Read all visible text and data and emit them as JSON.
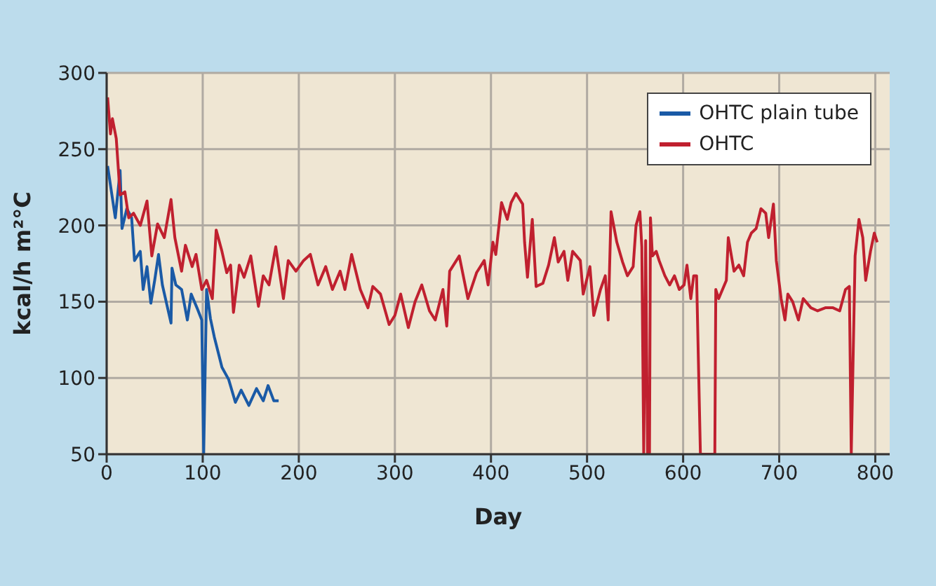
{
  "chart_data": {
    "type": "line",
    "xlabel": "Day",
    "ylabel": "kcal/h m²°C",
    "xlim": [
      0,
      815
    ],
    "xticks": [
      0,
      100,
      200,
      300,
      400,
      500,
      600,
      700,
      800
    ],
    "ylim": [
      50,
      300
    ],
    "yticks": [
      50,
      100,
      150,
      200,
      250,
      300
    ],
    "grid": true,
    "legend": "top right",
    "line_style": "solid",
    "series": [
      {
        "name": "OHTC plain tube",
        "color": "#1a5aa6",
        "x": [
          1,
          5,
          9,
          14,
          16,
          21,
          26,
          29,
          35,
          38,
          42,
          46,
          50,
          54,
          58,
          67,
          68,
          72,
          78,
          84,
          88,
          94,
          99,
          101,
          104,
          108,
          112,
          120,
          127,
          134,
          140,
          148,
          156,
          163,
          168,
          174,
          179
        ],
        "values": [
          239,
          222,
          205,
          236,
          198,
          211,
          205,
          177,
          183,
          158,
          173,
          149,
          164,
          181,
          161,
          136,
          172,
          161,
          158,
          138,
          155,
          146,
          138,
          50,
          158,
          139,
          127,
          107,
          99,
          84,
          92,
          82,
          93,
          85,
          95,
          85,
          85
        ]
      },
      {
        "name": "OHTC",
        "color": "#c0202f",
        "x": [
          1,
          4,
          6,
          10,
          14,
          19,
          23,
          28,
          35,
          42,
          47,
          53,
          60,
          67,
          71,
          78,
          82,
          89,
          93,
          99,
          104,
          110,
          114,
          120,
          125,
          129,
          132,
          138,
          143,
          150,
          158,
          163,
          169,
          176,
          184,
          189,
          197,
          205,
          212,
          220,
          228,
          235,
          243,
          248,
          255,
          264,
          272,
          277,
          285,
          294,
          300,
          306,
          314,
          321,
          328,
          336,
          342,
          350,
          354,
          357,
          367,
          376,
          385,
          393,
          397,
          402,
          405,
          411,
          417,
          421,
          426,
          433,
          435,
          438,
          443,
          447,
          454,
          460,
          466,
          470,
          476,
          480,
          485,
          493,
          496,
          503,
          507,
          514,
          519,
          522,
          525,
          531,
          537,
          542,
          548,
          551,
          555,
          557,
          559,
          561,
          563,
          565,
          566,
          568,
          572,
          575,
          581,
          586,
          591,
          596,
          601,
          604,
          608,
          611,
          614,
          618,
          633,
          634,
          637,
          645,
          647,
          653,
          658,
          663,
          667,
          671,
          676,
          681,
          686,
          689,
          694,
          697,
          702,
          706,
          709,
          714,
          720,
          725,
          733,
          740,
          748,
          756,
          763,
          769,
          773,
          775,
          779,
          783,
          787,
          790,
          795,
          799,
          802
        ],
        "values": [
          284,
          260,
          270,
          257,
          220,
          222,
          205,
          208,
          200,
          216,
          180,
          201,
          192,
          217,
          192,
          170,
          187,
          173,
          181,
          158,
          164,
          152,
          197,
          183,
          169,
          174,
          143,
          174,
          166,
          180,
          147,
          167,
          161,
          186,
          152,
          177,
          170,
          177,
          181,
          161,
          173,
          158,
          170,
          158,
          181,
          158,
          146,
          160,
          155,
          135,
          141,
          155,
          133,
          150,
          161,
          144,
          138,
          158,
          134,
          170,
          180,
          152,
          169,
          177,
          161,
          189,
          181,
          215,
          204,
          215,
          221,
          214,
          189,
          166,
          204,
          160,
          162,
          174,
          192,
          176,
          183,
          164,
          183,
          177,
          155,
          173,
          141,
          158,
          167,
          138,
          209,
          189,
          176,
          167,
          173,
          200,
          209,
          186,
          50,
          190,
          50,
          50,
          205,
          180,
          183,
          177,
          167,
          161,
          167,
          158,
          161,
          174,
          152,
          167,
          167,
          50,
          50,
          158,
          152,
          164,
          192,
          170,
          174,
          167,
          189,
          195,
          198,
          211,
          208,
          192,
          214,
          177,
          152,
          138,
          155,
          150,
          138,
          152,
          146,
          144,
          146,
          146,
          144,
          158,
          160,
          50,
          180,
          204,
          192,
          164,
          183,
          195,
          189
        ]
      }
    ]
  }
}
